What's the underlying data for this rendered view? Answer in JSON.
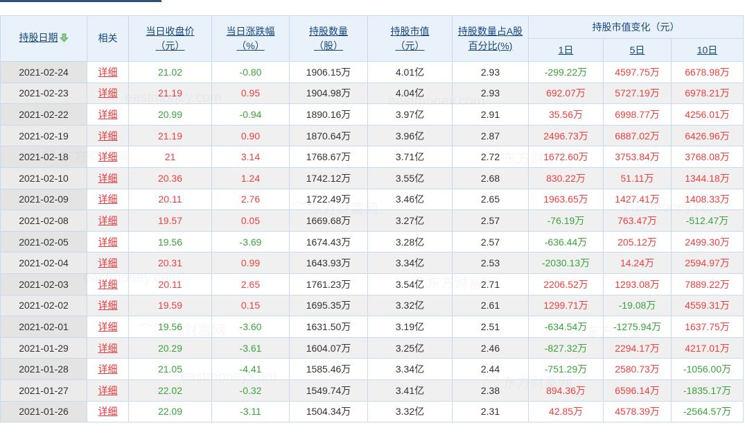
{
  "page": {
    "watermark_text": "东方财富网",
    "watermark_domain": "eastmoney.com"
  },
  "colors": {
    "positive_red": "#f03f3f",
    "negative_green": "#3aa33a",
    "detail_link_red": "#e6393d",
    "header_text_navy": "#17477e",
    "header_bg": "#e9f1fa",
    "border_blue": "#c9daee",
    "tab_indicator": "#2f4f7d"
  },
  "table": {
    "headers": {
      "date": "持股日期",
      "related": "相关",
      "close_line1": "当日收盘价",
      "close_line2": "（元）",
      "change_line1": "当日涨跌幅",
      "change_line2": "（%）",
      "shares_line1": "持股数量",
      "shares_line2": "（股）",
      "value_line1": "持股市值",
      "value_line2": "（元）",
      "pct_line1": "持股数量占A股",
      "pct_line2": "百分比(%)",
      "value_change_group": "持股市值变化（元）",
      "d1": "1日",
      "d5": "5日",
      "d10": "10日"
    },
    "detail_label": "详细",
    "rows": [
      {
        "date": "2021-02-24",
        "close": "21.02",
        "close_c": "green",
        "chg": "-0.80",
        "chg_c": "green",
        "shares": "1906.15万",
        "value": "4.01亿",
        "pct": "2.93",
        "d1": "-299.22万",
        "d1_c": "green",
        "d5": "4597.75万",
        "d5_c": "red",
        "d10": "6678.98万",
        "d10_c": "red"
      },
      {
        "date": "2021-02-23",
        "close": "21.19",
        "close_c": "red",
        "chg": "0.95",
        "chg_c": "red",
        "shares": "1904.98万",
        "value": "4.04亿",
        "pct": "2.93",
        "d1": "692.07万",
        "d1_c": "red",
        "d5": "5727.19万",
        "d5_c": "red",
        "d10": "6978.21万",
        "d10_c": "red"
      },
      {
        "date": "2021-02-22",
        "close": "20.99",
        "close_c": "green",
        "chg": "-0.94",
        "chg_c": "green",
        "shares": "1890.16万",
        "value": "3.97亿",
        "pct": "2.91",
        "d1": "35.56万",
        "d1_c": "red",
        "d5": "6998.77万",
        "d5_c": "red",
        "d10": "4256.01万",
        "d10_c": "red"
      },
      {
        "date": "2021-02-19",
        "close": "21.19",
        "close_c": "red",
        "chg": "0.90",
        "chg_c": "red",
        "shares": "1870.64万",
        "value": "3.96亿",
        "pct": "2.87",
        "d1": "2496.73万",
        "d1_c": "red",
        "d5": "6887.02万",
        "d5_c": "red",
        "d10": "6426.96万",
        "d10_c": "red"
      },
      {
        "date": "2021-02-18",
        "close": "21",
        "close_c": "red",
        "chg": "3.14",
        "chg_c": "red",
        "shares": "1768.67万",
        "value": "3.71亿",
        "pct": "2.72",
        "d1": "1672.60万",
        "d1_c": "red",
        "d5": "3753.84万",
        "d5_c": "red",
        "d10": "3768.08万",
        "d10_c": "red"
      },
      {
        "date": "2021-02-10",
        "close": "20.36",
        "close_c": "red",
        "chg": "1.24",
        "chg_c": "red",
        "shares": "1742.12万",
        "value": "3.55亿",
        "pct": "2.68",
        "d1": "830.22万",
        "d1_c": "red",
        "d5": "51.11万",
        "d5_c": "red",
        "d10": "1344.18万",
        "d10_c": "red"
      },
      {
        "date": "2021-02-09",
        "close": "20.11",
        "close_c": "red",
        "chg": "2.76",
        "chg_c": "red",
        "shares": "1722.49万",
        "value": "3.46亿",
        "pct": "2.65",
        "d1": "1963.65万",
        "d1_c": "red",
        "d5": "1427.41万",
        "d5_c": "red",
        "d10": "1408.33万",
        "d10_c": "red"
      },
      {
        "date": "2021-02-08",
        "close": "19.57",
        "close_c": "red",
        "chg": "0.05",
        "chg_c": "red",
        "shares": "1669.68万",
        "value": "3.27亿",
        "pct": "2.57",
        "d1": "-76.19万",
        "d1_c": "green",
        "d5": "763.47万",
        "d5_c": "red",
        "d10": "-512.47万",
        "d10_c": "green"
      },
      {
        "date": "2021-02-05",
        "close": "19.56",
        "close_c": "green",
        "chg": "-3.69",
        "chg_c": "green",
        "shares": "1674.43万",
        "value": "3.28亿",
        "pct": "2.57",
        "d1": "-636.44万",
        "d1_c": "green",
        "d5": "205.12万",
        "d5_c": "red",
        "d10": "2499.30万",
        "d10_c": "red"
      },
      {
        "date": "2021-02-04",
        "close": "20.31",
        "close_c": "red",
        "chg": "0.99",
        "chg_c": "red",
        "shares": "1643.93万",
        "value": "3.34亿",
        "pct": "2.53",
        "d1": "-2030.13万",
        "d1_c": "green",
        "d5": "14.24万",
        "d5_c": "red",
        "d10": "2594.97万",
        "d10_c": "red"
      },
      {
        "date": "2021-02-03",
        "close": "20.11",
        "close_c": "red",
        "chg": "2.65",
        "chg_c": "red",
        "shares": "1761.23万",
        "value": "3.54亿",
        "pct": "2.71",
        "d1": "2206.52万",
        "d1_c": "red",
        "d5": "1293.08万",
        "d5_c": "red",
        "d10": "7889.22万",
        "d10_c": "red"
      },
      {
        "date": "2021-02-02",
        "close": "19.59",
        "close_c": "red",
        "chg": "0.15",
        "chg_c": "red",
        "shares": "1695.35万",
        "value": "3.32亿",
        "pct": "2.61",
        "d1": "1299.71万",
        "d1_c": "red",
        "d5": "-19.08万",
        "d5_c": "green",
        "d10": "4559.31万",
        "d10_c": "red"
      },
      {
        "date": "2021-02-01",
        "close": "19.56",
        "close_c": "green",
        "chg": "-3.60",
        "chg_c": "green",
        "shares": "1631.50万",
        "value": "3.19亿",
        "pct": "2.51",
        "d1": "-634.54万",
        "d1_c": "green",
        "d5": "-1275.94万",
        "d5_c": "green",
        "d10": "1637.75万",
        "d10_c": "red"
      },
      {
        "date": "2021-01-29",
        "close": "20.29",
        "close_c": "green",
        "chg": "-3.61",
        "chg_c": "green",
        "shares": "1604.07万",
        "value": "3.25亿",
        "pct": "2.46",
        "d1": "-827.32万",
        "d1_c": "green",
        "d5": "2294.17万",
        "d5_c": "red",
        "d10": "4217.01万",
        "d10_c": "red"
      },
      {
        "date": "2021-01-28",
        "close": "21.05",
        "close_c": "green",
        "chg": "-4.41",
        "chg_c": "green",
        "shares": "1585.46万",
        "value": "3.34亿",
        "pct": "2.44",
        "d1": "-751.29万",
        "d1_c": "green",
        "d5": "2580.73万",
        "d5_c": "red",
        "d10": "-1056.00万",
        "d10_c": "green"
      },
      {
        "date": "2021-01-27",
        "close": "22.02",
        "close_c": "green",
        "chg": "-0.32",
        "chg_c": "green",
        "shares": "1549.74万",
        "value": "3.41亿",
        "pct": "2.38",
        "d1": "894.36万",
        "d1_c": "red",
        "d5": "6596.14万",
        "d5_c": "red",
        "d10": "-1835.17万",
        "d10_c": "green"
      },
      {
        "date": "2021-01-26",
        "close": "22.09",
        "close_c": "green",
        "chg": "-3.11",
        "chg_c": "green",
        "shares": "1504.34万",
        "value": "3.32亿",
        "pct": "2.31",
        "d1": "42.85万",
        "d1_c": "red",
        "d5": "4578.39万",
        "d5_c": "red",
        "d10": "-2564.57万",
        "d10_c": "green"
      }
    ]
  }
}
